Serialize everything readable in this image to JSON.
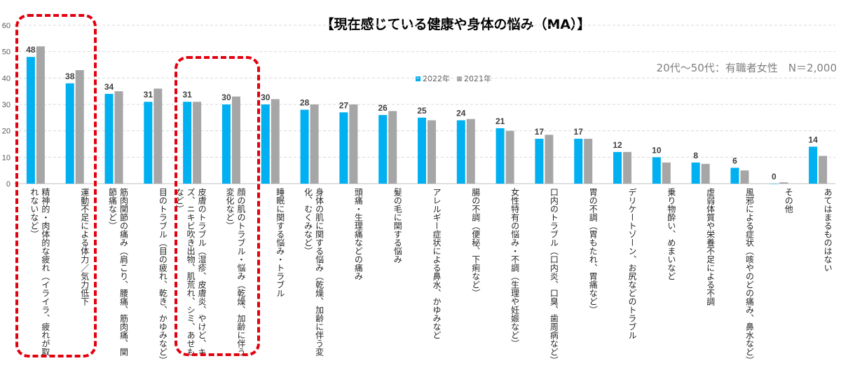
{
  "title": "【現在感じている健康や身体の悩み（MA）】",
  "subtitle": "20代～50代：有職者女性　N＝2,000",
  "colors": {
    "s2022": "#00b0f0",
    "s2021": "#a6a6a6",
    "highlight": "#e3000f"
  },
  "chart_data": {
    "type": "bar",
    "title": "【現在感じている健康や身体の悩み（MA）】",
    "ylim": [
      0,
      60
    ],
    "yticks": [
      0,
      10,
      20,
      30,
      40,
      50,
      60
    ],
    "legend_position": "top-center",
    "categories": [
      "精神的・肉体的な疲れ（イライラ、疲れが取れないなど）",
      "運動不足による体力／気力低下",
      "筋肉関節の痛み（肩こり、腰痛、筋肉痛、関節痛など）",
      "目のトラブル（目の疲れ、乾き、かゆみなど）",
      "皮膚のトラブル（湿疹、皮膚炎、やけど、キズ、ニキビ吹き出物、肌荒れ、シミ、あせもなど）",
      "顔の肌のトラブル・悩み（乾燥、加齢に伴う変化など）",
      "睡眠に関する悩み・トラブル",
      "身体の肌に関する悩み（乾燥、加齢に伴う変化、むくみなど）",
      "頭痛・生理痛などの痛み",
      "髪の毛に関する悩み",
      "アレルギー症状による鼻水、かゆみなど",
      "腸の不調（便秘、下痢など）",
      "女性特有の悩み・不調（生理や妊娠など）",
      "口内のトラブル（口内炎、口臭、歯周病など）",
      "胃の不調（胃もたれ、胃痛など）",
      "デリケートゾーン、お尻などのトラブル",
      "乗り物酔い、めまいなど",
      "虚弱体質や栄養不足による不調",
      "風邪による症状（咳やのどの痛み、鼻水など）",
      "その他",
      "あてはまるものはない"
    ],
    "series": [
      {
        "name": "2022年",
        "values": [
          48,
          38,
          34,
          31,
          31,
          30,
          30,
          28,
          27,
          26,
          25,
          24,
          21,
          17,
          17,
          12,
          10,
          8,
          6,
          0,
          14
        ]
      },
      {
        "name": "2021年",
        "values": [
          52,
          43,
          35,
          36,
          31,
          33,
          32,
          30,
          30,
          27.5,
          24,
          24.5,
          20,
          18.5,
          17,
          12,
          8,
          7.5,
          5,
          0.5,
          10.5
        ]
      }
    ],
    "data_labels": [
      "48",
      "38",
      "34",
      "31",
      "31",
      "30",
      "30",
      "28",
      "27",
      "26",
      "25",
      "24",
      "21",
      "17",
      "17",
      "12",
      "10",
      "8",
      "6",
      "0",
      "14"
    ]
  }
}
